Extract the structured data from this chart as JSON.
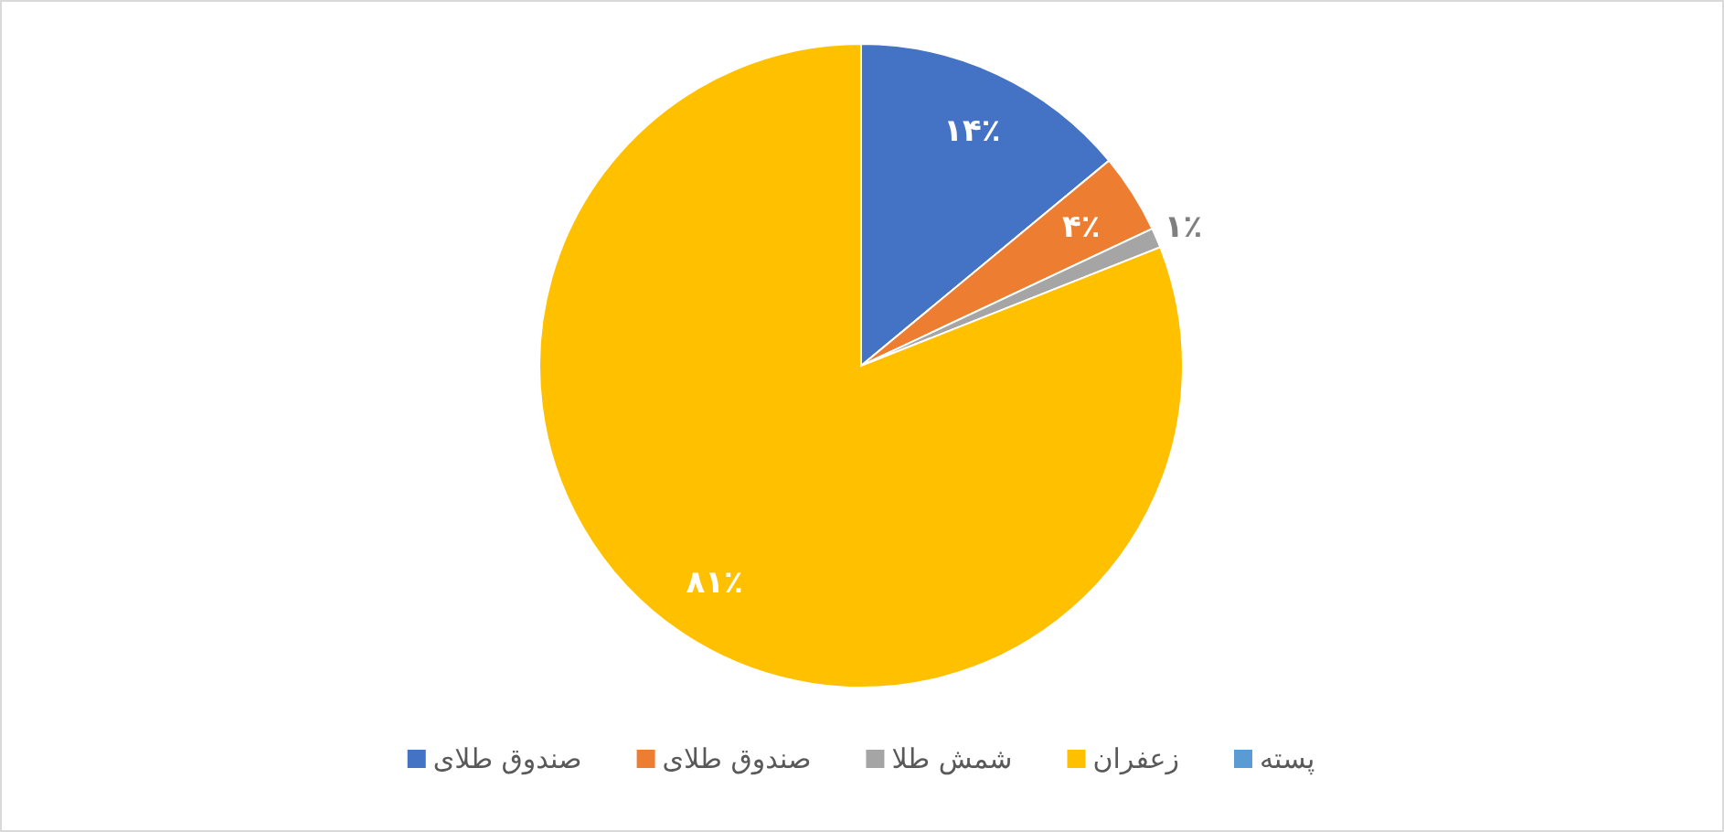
{
  "chart_data": {
    "type": "pie",
    "categories": [
      "صندوق طلای",
      "صندوق طلای",
      "شمش طلا",
      "زعفران",
      "پسته"
    ],
    "values": [
      14,
      4,
      1,
      81,
      0
    ],
    "colors": [
      "#4472c4",
      "#ed7d31",
      "#a5a5a5",
      "#ffc000",
      "#5b9bd5"
    ],
    "value_labels": [
      "۱۴٪",
      "۴٪",
      "۱٪",
      "۸۱٪",
      null
    ],
    "legend": "bottom"
  }
}
